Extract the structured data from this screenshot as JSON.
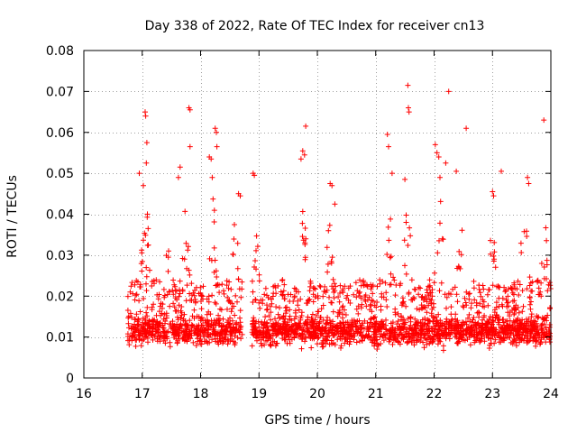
{
  "chart_data": {
    "type": "scatter",
    "title": "Day 338 of 2022, Rate Of TEC Index for receiver cn13",
    "xlabel": "GPS time / hours",
    "ylabel": "ROTI / TECUs",
    "xlim": [
      16,
      24
    ],
    "ylim": [
      0,
      0.08
    ],
    "x_ticks": [
      16,
      17,
      18,
      19,
      20,
      21,
      22,
      23,
      24
    ],
    "x_tick_labels": [
      "16",
      "17",
      "18",
      "19",
      "20",
      "21",
      "22",
      "23",
      "24"
    ],
    "y_ticks": [
      0,
      0.01,
      0.02,
      0.03,
      0.04,
      0.05,
      0.06,
      0.07,
      0.08
    ],
    "y_tick_labels": [
      "0",
      "0.01",
      "0.02",
      "0.03",
      "0.04",
      "0.05",
      "0.06",
      "0.07",
      "0.08"
    ],
    "grid": true,
    "marker": "+",
    "color": "#ff0000",
    "data_start_hour": 16.75,
    "data_end_hour": 24.0,
    "gap": [
      18.72,
      18.88
    ],
    "notable_points": [
      {
        "x": 17.05,
        "y": 0.065
      },
      {
        "x": 17.06,
        "y": 0.064
      },
      {
        "x": 17.08,
        "y": 0.0575
      },
      {
        "x": 17.07,
        "y": 0.0525
      },
      {
        "x": 16.95,
        "y": 0.05
      },
      {
        "x": 17.02,
        "y": 0.047
      },
      {
        "x": 17.8,
        "y": 0.066
      },
      {
        "x": 17.82,
        "y": 0.0655
      },
      {
        "x": 17.82,
        "y": 0.0565
      },
      {
        "x": 17.65,
        "y": 0.0515
      },
      {
        "x": 17.62,
        "y": 0.049
      },
      {
        "x": 18.25,
        "y": 0.061
      },
      {
        "x": 18.27,
        "y": 0.06
      },
      {
        "x": 18.28,
        "y": 0.0565
      },
      {
        "x": 18.15,
        "y": 0.054
      },
      {
        "x": 18.18,
        "y": 0.0535
      },
      {
        "x": 18.2,
        "y": 0.049
      },
      {
        "x": 18.65,
        "y": 0.045
      },
      {
        "x": 18.68,
        "y": 0.0445
      },
      {
        "x": 18.9,
        "y": 0.05
      },
      {
        "x": 18.92,
        "y": 0.0495
      },
      {
        "x": 19.8,
        "y": 0.0615
      },
      {
        "x": 19.75,
        "y": 0.0555
      },
      {
        "x": 19.78,
        "y": 0.0545
      },
      {
        "x": 19.72,
        "y": 0.0535
      },
      {
        "x": 20.22,
        "y": 0.0475
      },
      {
        "x": 20.25,
        "y": 0.047
      },
      {
        "x": 20.3,
        "y": 0.0425
      },
      {
        "x": 21.2,
        "y": 0.0595
      },
      {
        "x": 21.22,
        "y": 0.0565
      },
      {
        "x": 21.28,
        "y": 0.05
      },
      {
        "x": 21.55,
        "y": 0.0715
      },
      {
        "x": 21.56,
        "y": 0.066
      },
      {
        "x": 21.57,
        "y": 0.065
      },
      {
        "x": 21.5,
        "y": 0.0485
      },
      {
        "x": 22.25,
        "y": 0.07
      },
      {
        "x": 22.02,
        "y": 0.057
      },
      {
        "x": 22.05,
        "y": 0.055
      },
      {
        "x": 22.08,
        "y": 0.054
      },
      {
        "x": 22.2,
        "y": 0.0525
      },
      {
        "x": 22.1,
        "y": 0.049
      },
      {
        "x": 22.55,
        "y": 0.061
      },
      {
        "x": 22.38,
        "y": 0.0505
      },
      {
        "x": 23.0,
        "y": 0.0455
      },
      {
        "x": 23.02,
        "y": 0.0445
      },
      {
        "x": 23.15,
        "y": 0.0505
      },
      {
        "x": 23.6,
        "y": 0.049
      },
      {
        "x": 23.62,
        "y": 0.0475
      },
      {
        "x": 23.88,
        "y": 0.063
      }
    ]
  }
}
